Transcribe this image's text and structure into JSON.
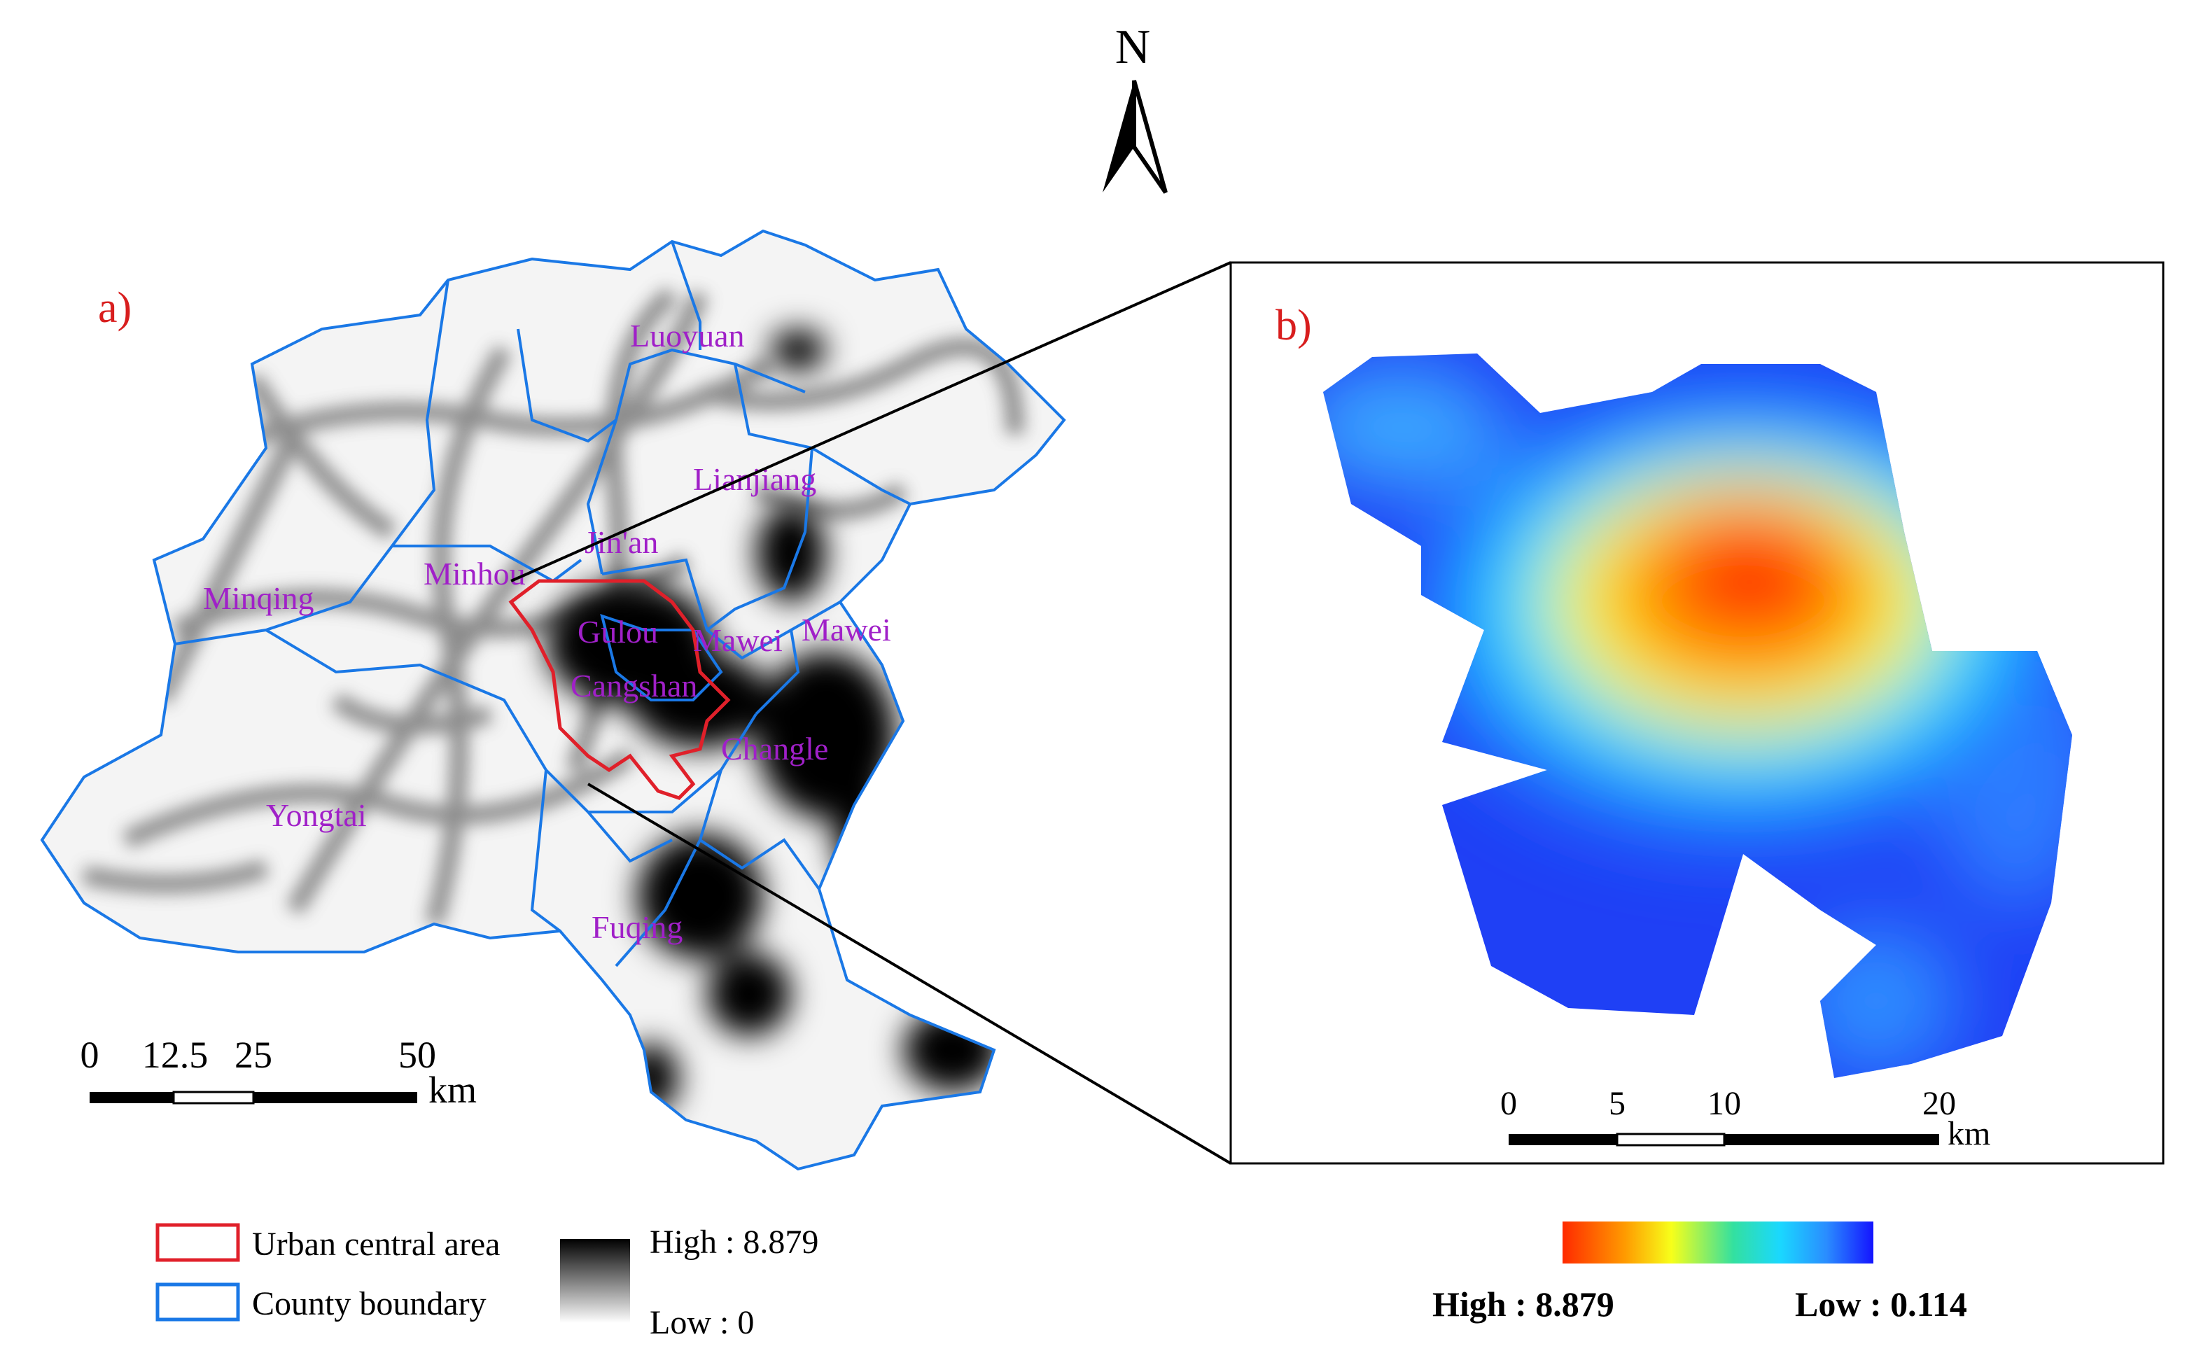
{
  "north_arrow": {
    "label": "N"
  },
  "panel_a": {
    "label": "a)",
    "places": [
      {
        "id": "luoyuan",
        "name": "Luoyuan"
      },
      {
        "id": "lianjiang",
        "name": "Lianjiang"
      },
      {
        "id": "jinan",
        "name": "Jin'an"
      },
      {
        "id": "minhou",
        "name": "Minhou"
      },
      {
        "id": "minqing",
        "name": "Minqing"
      },
      {
        "id": "gulou",
        "name": "Gulou"
      },
      {
        "id": "mawei-inner",
        "name": "Mawei"
      },
      {
        "id": "mawei-outer",
        "name": "Mawei"
      },
      {
        "id": "cangshan",
        "name": "Cangshan"
      },
      {
        "id": "changle",
        "name": "Changle"
      },
      {
        "id": "yongtai",
        "name": "Yongtai"
      },
      {
        "id": "fuqing",
        "name": "Fuqing"
      }
    ],
    "scale_bar": {
      "ticks": [
        "0",
        "12.5",
        "25",
        "50"
      ],
      "unit": "km"
    }
  },
  "panel_b": {
    "label": "b)",
    "scale_bar": {
      "ticks": [
        "0",
        "5",
        "10",
        "20"
      ],
      "unit": "km"
    },
    "legend": {
      "high": "High : 8.879",
      "low": "Low : 0.114",
      "high_value": 8.879,
      "low_value": 0.114
    }
  },
  "legend_a": {
    "urban_label": "Urban central area",
    "county_label": "County boundary",
    "high": "High : 8.879",
    "low": "Low : 0",
    "high_value": 8.879,
    "low_value": 0
  },
  "colors": {
    "urban_boundary": "#e0202a",
    "county_boundary": "#1a78e6",
    "place_label": "#a020c8",
    "panel_label": "#d81e1e",
    "density_high": "#000000",
    "density_low": "#ffffff"
  }
}
